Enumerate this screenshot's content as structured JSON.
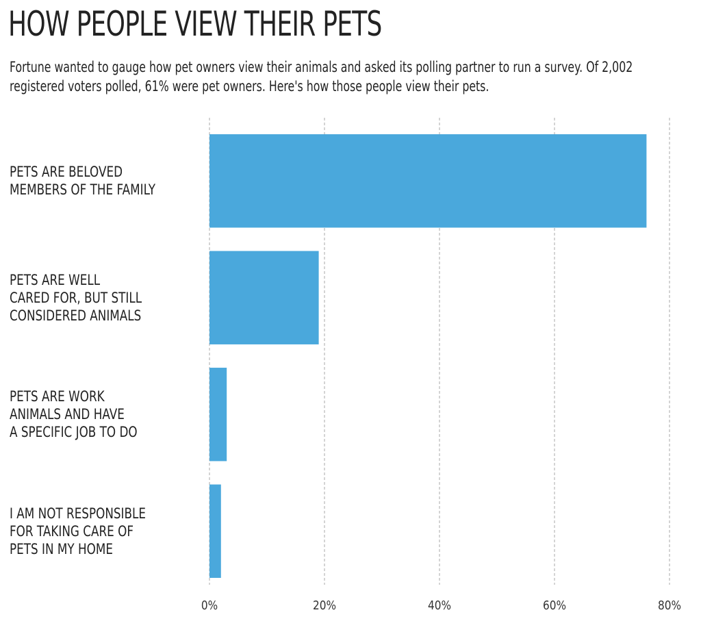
{
  "chart_data": {
    "type": "barh",
    "title": "HOW PEOPLE VIEW THEIR PETS",
    "subtitle": "Fortune wanted to gauge how pet owners view their animals and asked its polling partner to run a survey. Of 2,002 registered voters polled, 61% were pet owners. Here's how those people view their pets.",
    "categories": [
      "PETS ARE BELOVED\nMEMBERS OF THE FAMILY",
      "PETS ARE WELL\nCARED FOR, BUT STILL\nCONSIDERED ANIMALS",
      "PETS ARE WORK\nANIMALS AND HAVE\nA SPECIFIC JOB TO DO",
      "I AM NOT RESPONSIBLE\nFOR TAKING CARE OF\nPETS IN MY HOME"
    ],
    "values": [
      76,
      19,
      3,
      2
    ],
    "color": "#4aa8dc",
    "xlim": [
      0,
      80
    ],
    "xticks": [
      {
        "value": 0,
        "label": "0%"
      },
      {
        "value": 20,
        "label": "20%"
      },
      {
        "value": 40,
        "label": "40%"
      },
      {
        "value": 60,
        "label": "60%"
      },
      {
        "value": 80,
        "label": "80%"
      }
    ],
    "grid": true
  }
}
